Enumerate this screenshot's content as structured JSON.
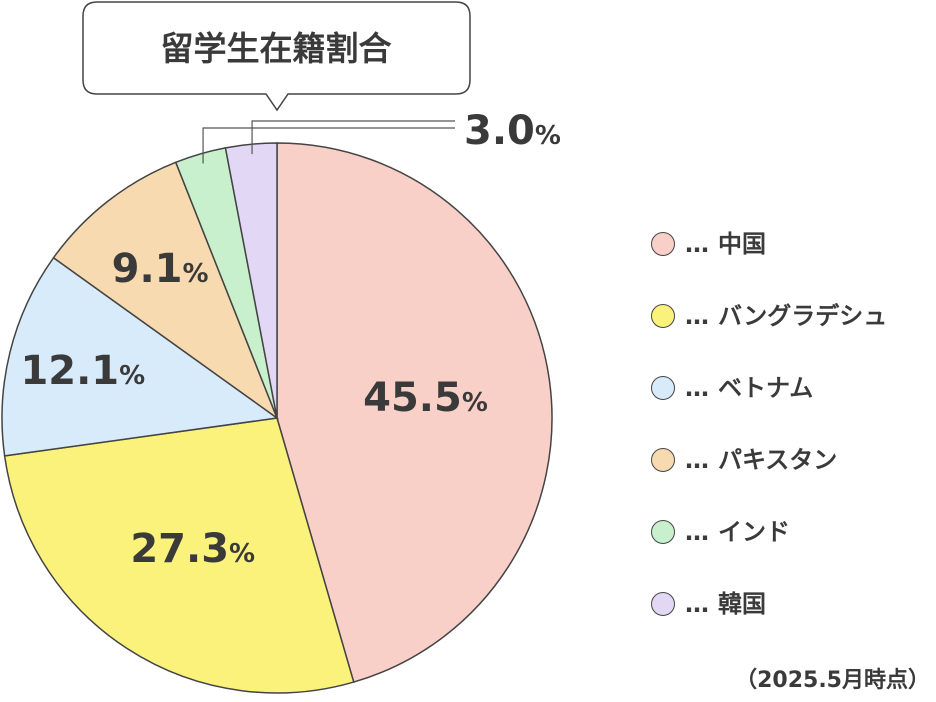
{
  "chart_data": {
    "type": "pie",
    "title": "留学生在籍割合",
    "categories": [
      "中国",
      "バングラデシュ",
      "ベトナム",
      "パキスタン",
      "インド",
      "韓国"
    ],
    "values": [
      45.5,
      27.3,
      12.1,
      9.1,
      3.0,
      3.0
    ],
    "labels": [
      "45.5",
      "27.3",
      "12.1",
      "9.1",
      "3.0",
      ""
    ],
    "unit": "%",
    "colors": [
      "#f8d0c8",
      "#fbf27c",
      "#d8ebfa",
      "#f8dab0",
      "#c8f0cc",
      "#e2d8f5"
    ],
    "legend_prefix": "…",
    "legend_placement": "right",
    "note": "（2025.5月時点）"
  }
}
